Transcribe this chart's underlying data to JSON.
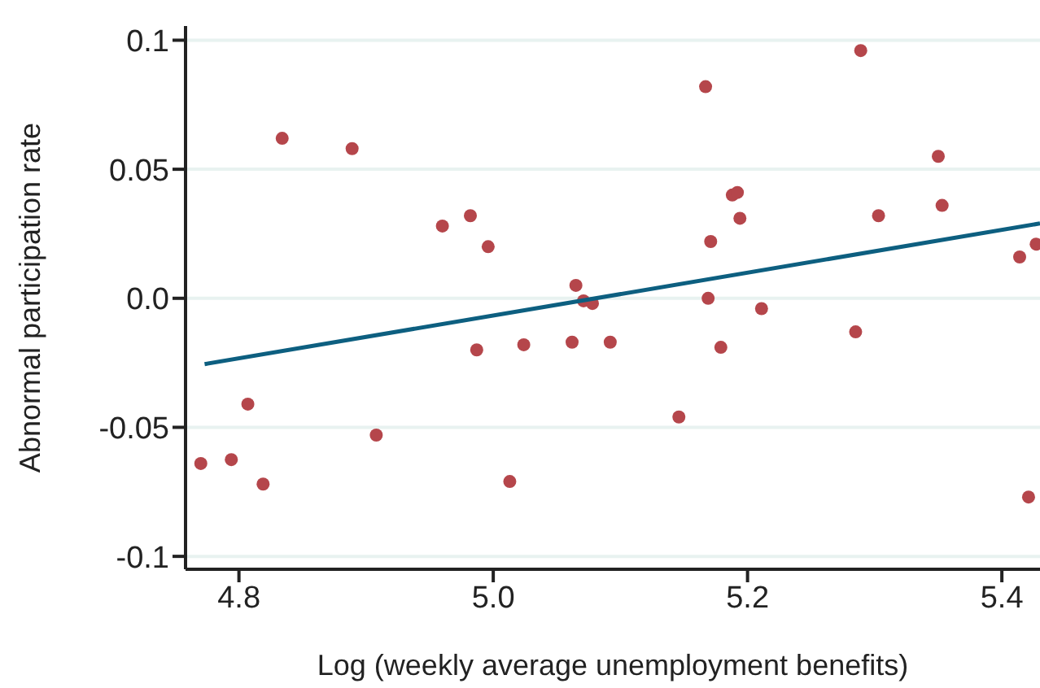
{
  "chart_data": {
    "type": "scatter",
    "xlabel": "Log (weekly average unemployment benefits)",
    "ylabel": "Abnormal participation rate",
    "xlim": [
      4.758,
      5.43
    ],
    "xticks": [
      {
        "value": 4.8,
        "label": "4.8"
      },
      {
        "value": 5.0,
        "label": "5.0"
      },
      {
        "value": 5.2,
        "label": "5.2"
      },
      {
        "value": 5.4,
        "label": "5.4"
      }
    ],
    "ylim": [
      -0.105,
      0.1055
    ],
    "yticks": [
      {
        "value": -0.1,
        "label": "-0.1"
      },
      {
        "value": -0.05,
        "label": "-0.05"
      },
      {
        "value": 0,
        "label": "0.0"
      },
      {
        "value": 0.05,
        "label": "0.05"
      },
      {
        "value": 0.1,
        "label": "0.1"
      }
    ],
    "grid": "y",
    "marker": "circle",
    "series": [
      {
        "color": "#b5464b",
        "x": [
          4.77,
          4.794,
          4.807,
          4.819,
          4.834,
          4.889,
          4.908,
          4.96,
          4.982,
          4.996,
          4.987,
          5.013,
          5.024,
          5.062,
          5.065,
          5.071,
          5.078,
          5.092,
          5.146,
          5.167,
          5.169,
          5.171,
          5.179,
          5.188,
          5.192,
          5.194,
          5.211,
          5.285,
          5.289,
          5.303,
          5.35,
          5.353,
          5.414,
          5.421,
          5.427
        ],
        "values": [
          -0.064,
          -0.0625,
          -0.041,
          -0.072,
          0.062,
          0.058,
          -0.053,
          0.028,
          0.032,
          0.02,
          -0.02,
          -0.071,
          -0.018,
          -0.017,
          0.005,
          -0.001,
          -0.002,
          -0.017,
          -0.046,
          0.082,
          0.0,
          0.022,
          -0.019,
          0.04,
          0.041,
          0.031,
          -0.004,
          -0.013,
          0.096,
          0.032,
          0.055,
          0.036,
          0.016,
          -0.077,
          0.021
        ]
      },
      {
        "type": "line",
        "color": "#0d5f80",
        "marker": "none",
        "x": [
          4.773,
          5.43
        ],
        "values": [
          -0.0255,
          0.029
        ]
      }
    ]
  }
}
